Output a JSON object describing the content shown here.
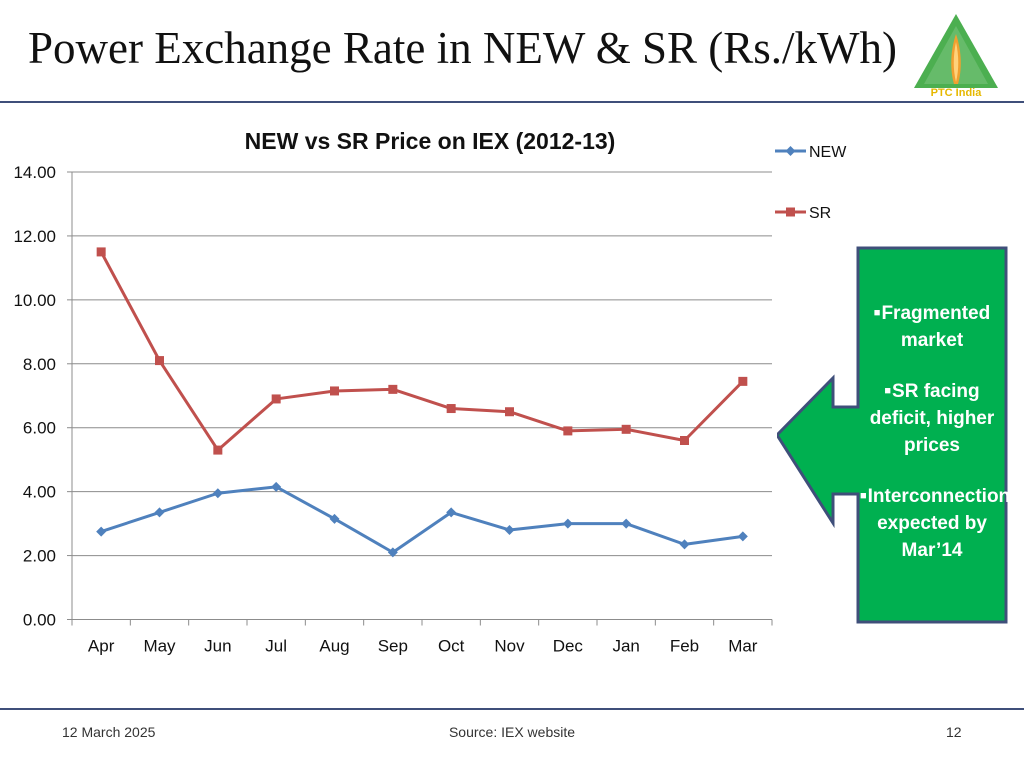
{
  "slide": {
    "title": "Power Exchange Rate in NEW & SR (Rs./kWh)",
    "logo_text": "PTC India"
  },
  "chart_data": {
    "type": "line",
    "title": "NEW vs SR Price on IEX (2012-13)",
    "categories": [
      "Apr",
      "May",
      "Jun",
      "Jul",
      "Aug",
      "Sep",
      "Oct",
      "Nov",
      "Dec",
      "Jan",
      "Feb",
      "Mar"
    ],
    "series": [
      {
        "name": "NEW",
        "color": "#4f81bd",
        "marker": "diamond",
        "values": [
          2.75,
          3.35,
          3.95,
          4.15,
          3.15,
          2.1,
          3.35,
          2.8,
          3.0,
          3.0,
          2.35,
          2.6
        ]
      },
      {
        "name": "SR",
        "color": "#c0504d",
        "marker": "square",
        "values": [
          11.5,
          8.1,
          5.3,
          6.9,
          7.15,
          7.2,
          6.6,
          6.5,
          5.9,
          5.95,
          5.6,
          7.45
        ]
      }
    ],
    "ylim": [
      0,
      14
    ],
    "yticks": [
      "0.00",
      "2.00",
      "4.00",
      "6.00",
      "8.00",
      "10.00",
      "12.00",
      "14.00"
    ],
    "grid": true,
    "legend": "right"
  },
  "callout": {
    "color": "#00b050",
    "items": [
      "Fragmented market",
      "SR facing deficit, higher prices",
      "Interconnection expected by Mar’14"
    ]
  },
  "footer": {
    "date": "12 March 2025",
    "source": "Source: IEX website",
    "page": "12"
  }
}
